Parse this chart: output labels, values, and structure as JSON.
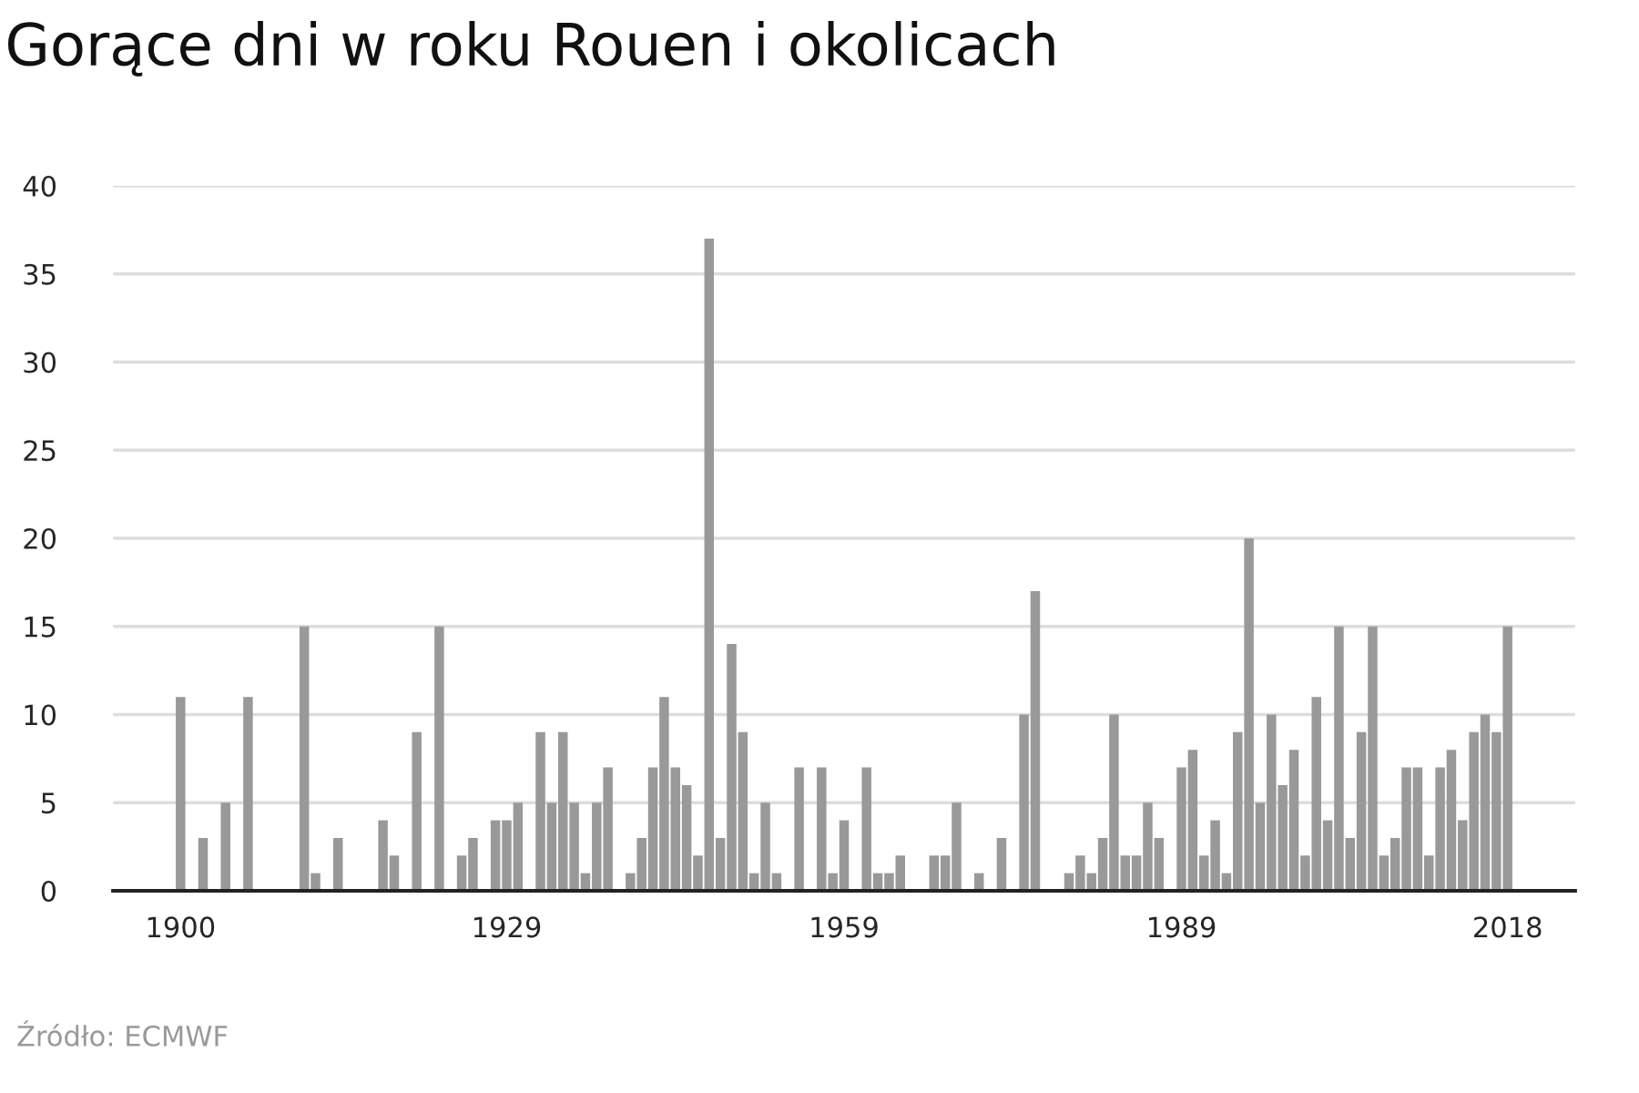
{
  "chart_data": {
    "type": "bar",
    "title": "Gorące dni w roku Rouen i okolicach",
    "x": [
      1900,
      1901,
      1902,
      1903,
      1904,
      1905,
      1906,
      1907,
      1908,
      1909,
      1910,
      1911,
      1912,
      1913,
      1914,
      1915,
      1916,
      1917,
      1918,
      1919,
      1920,
      1921,
      1922,
      1923,
      1924,
      1925,
      1926,
      1927,
      1928,
      1929,
      1930,
      1931,
      1932,
      1933,
      1934,
      1935,
      1936,
      1937,
      1938,
      1939,
      1940,
      1941,
      1942,
      1943,
      1944,
      1945,
      1946,
      1947,
      1948,
      1949,
      1950,
      1951,
      1952,
      1953,
      1954,
      1955,
      1956,
      1957,
      1958,
      1959,
      1960,
      1961,
      1962,
      1963,
      1964,
      1965,
      1966,
      1967,
      1968,
      1969,
      1970,
      1971,
      1972,
      1973,
      1974,
      1975,
      1976,
      1977,
      1978,
      1979,
      1980,
      1981,
      1982,
      1983,
      1984,
      1985,
      1986,
      1987,
      1988,
      1989,
      1990,
      1991,
      1992,
      1993,
      1994,
      1995,
      1996,
      1997,
      1998,
      1999,
      2000,
      2001,
      2002,
      2003,
      2004,
      2005,
      2006,
      2007,
      2008,
      2009,
      2010,
      2011,
      2012,
      2013,
      2014,
      2015,
      2016,
      2017,
      2018
    ],
    "values": [
      11,
      0,
      3,
      0,
      5,
      0,
      11,
      0,
      0,
      0,
      0,
      15,
      1,
      0,
      3,
      0,
      0,
      0,
      4,
      2,
      0,
      9,
      0,
      15,
      0,
      2,
      3,
      0,
      4,
      4,
      5,
      0,
      9,
      5,
      9,
      5,
      1,
      5,
      7,
      0,
      1,
      3,
      7,
      11,
      7,
      6,
      2,
      37,
      3,
      14,
      9,
      1,
      5,
      1,
      0,
      7,
      0,
      7,
      1,
      4,
      0,
      7,
      1,
      1,
      2,
      0,
      0,
      2,
      2,
      5,
      0,
      1,
      0,
      3,
      0,
      10,
      17,
      0,
      0,
      1,
      2,
      1,
      3,
      10,
      2,
      2,
      5,
      3,
      0,
      7,
      8,
      2,
      4,
      1,
      9,
      20,
      5,
      10,
      6,
      8,
      2,
      11,
      4,
      15,
      3,
      9,
      15,
      2,
      3,
      7,
      7,
      2,
      7,
      8,
      4,
      9,
      10,
      9,
      15
    ],
    "color": "#999999",
    "xlim": [
      1894,
      2024
    ],
    "xticks": [
      1900,
      1929,
      1959,
      1989,
      2018
    ],
    "ylim": [
      0,
      40
    ],
    "yticks": [
      0,
      5,
      10,
      15,
      20,
      25,
      30,
      35,
      40
    ],
    "grid": "y",
    "annotations": [
      "Źródło: ECMWF"
    ]
  }
}
